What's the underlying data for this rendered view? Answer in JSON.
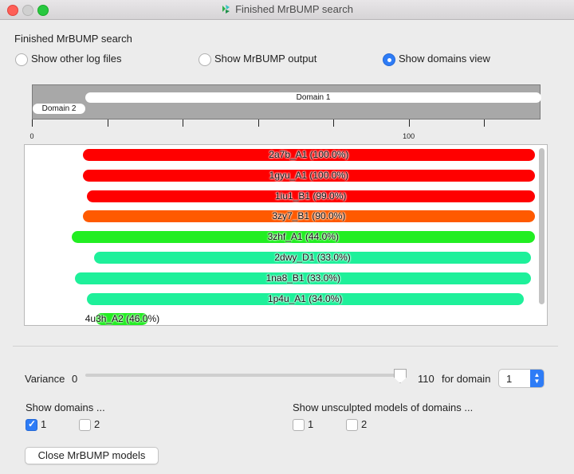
{
  "window": {
    "title": "Finished MrBUMP search"
  },
  "heading": "Finished MrBUMP search",
  "view_options": [
    {
      "label": "Show other log files",
      "selected": false
    },
    {
      "label": "Show MrBUMP output",
      "selected": false
    },
    {
      "label": "Show domains view",
      "selected": true
    }
  ],
  "domain_map": {
    "domains": [
      {
        "label": "Domain 1",
        "start": 14,
        "end": 135
      },
      {
        "label": "Domain 2",
        "start": 0,
        "end": 14
      }
    ],
    "axis": {
      "max": 135,
      "tick_labels": [
        "0",
        "100"
      ]
    }
  },
  "hits": [
    {
      "label": "2a7b_A1 (100.0%)",
      "color": "#ff0000",
      "start": 13.5,
      "end": 133.5
    },
    {
      "label": "1gyu_A1 (100.0%)",
      "color": "#ff0000",
      "start": 13.5,
      "end": 133.5
    },
    {
      "label": "1iu1_B1 (99.0%)",
      "color": "#ff0000",
      "start": 14.5,
      "end": 133.5
    },
    {
      "label": "3zy7_B1 (90.0%)",
      "color": "#ff5a00",
      "start": 13.5,
      "end": 133.5
    },
    {
      "label": "3zhf_A1 (44.0%)",
      "color": "#22ee22",
      "start": 10.5,
      "end": 133.5
    },
    {
      "label": "2dwy_D1 (33.0%)",
      "color": "#1ef09a",
      "start": 16.5,
      "end": 132.5
    },
    {
      "label": "1na8_B1 (33.0%)",
      "color": "#1ef09a",
      "start": 11.5,
      "end": 132.5
    },
    {
      "label": "1p4u_A1 (34.0%)",
      "color": "#1ef09a",
      "start": 14.5,
      "end": 130.5
    },
    {
      "label": "4u3h_A2 (46.0%)",
      "color": "#22ee22",
      "start": 17,
      "end": 31
    }
  ],
  "variance": {
    "label": "Variance",
    "min": "0",
    "max": "110",
    "value": 110,
    "for_domain_label": "for domain",
    "domain_value": "1"
  },
  "show_domains": {
    "label": "Show domains ...",
    "options": [
      {
        "label": "1",
        "checked": true
      },
      {
        "label": "2",
        "checked": false
      }
    ]
  },
  "show_unsculpted": {
    "label": "Show unsculpted models of domains ...",
    "options": [
      {
        "label": "1",
        "checked": false
      },
      {
        "label": "2",
        "checked": false
      }
    ]
  },
  "close_button": "Close MrBUMP models"
}
